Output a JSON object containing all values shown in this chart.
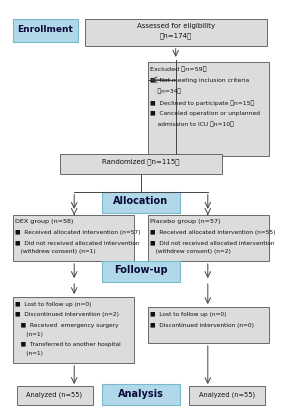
{
  "bg_color": "#ffffff",
  "box_fill": "#dcdcdc",
  "box_border": "#555555",
  "label_fill": "#b0d8e8",
  "label_border": "#7ab8d0",
  "text_color": "#111111",
  "label_text_color": "#0a0a3a",
  "arrow_color": "#444444",
  "enrollment_label": "Enrollment",
  "allocation_label": "Allocation",
  "followup_label": "Follow-up",
  "analysis_label": "Analysis",
  "assess_line1": "Assessed for eligibility",
  "assess_line2": "（n=174）",
  "excl_line1": "Excluded （n=59）",
  "excl_line2": "■  Not meeting inclusion criteria",
  "excl_line3": "    （n=34）",
  "excl_line4": "■  Declined to participate （n=15）",
  "excl_line5": "■  Canceled operation or unplanned",
  "excl_line6": "    admission to ICU （n=10）",
  "rand_text": "Randomized （n=115）",
  "dex_line1": "DEX group (n=58)",
  "dex_line2": "■  Received allocated intervention (n=57)",
  "dex_line3": "■  Did not received allocated intervention",
  "dex_line4": "   (withdrew consent) (n=1)",
  "plac_line1": "Placebo group (n=57)",
  "plac_line2": "■  Received allocated intervention (n=55)",
  "plac_line3": "■  Did not received allocated intervention",
  "plac_line4": "   (withdrew consent) (n=2)",
  "dfu_line1": "■  Lost to follow up (n=0)",
  "dfu_line2": "■  Discontinued intervention (n=2)",
  "dfu_line3": "   ■  Received  emergency surgery",
  "dfu_line4": "      (n=1)",
  "dfu_line5": "   ■  Transferred to another hospital",
  "dfu_line6": "      (n=1)",
  "pfu_line1": "■  Lost to follow up (n=0)",
  "pfu_line2": "■  Discontinued intervention (n=0)",
  "dex_analysis": "Analyzed (n=55)",
  "plac_analysis": "Analyzed (n=55)"
}
